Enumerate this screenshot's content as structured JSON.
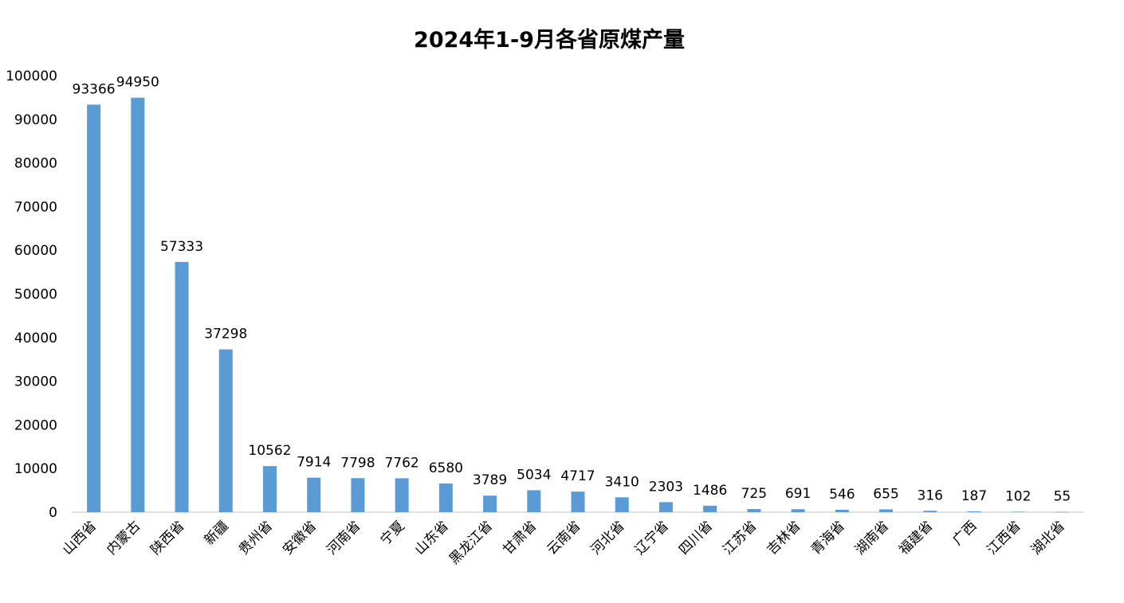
{
  "chart_data": {
    "type": "bar",
    "title": "2024年1-9月各省原煤产量",
    "xlabel": "",
    "ylabel": "",
    "ylim": [
      0,
      100000
    ],
    "yticks": [
      0,
      10000,
      20000,
      30000,
      40000,
      50000,
      60000,
      70000,
      80000,
      90000,
      100000
    ],
    "grid": false,
    "legend": "none",
    "bar_color": "#5B9BD5",
    "categories": [
      "山西省",
      "内蒙古",
      "陕西省",
      "新疆",
      "贵州省",
      "安徽省",
      "河南省",
      "宁夏",
      "山东省",
      "黑龙江省",
      "甘肃省",
      "云南省",
      "河北省",
      "辽宁省",
      "四川省",
      "江苏省",
      "吉林省",
      "青海省",
      "湖南省",
      "福建省",
      "广西",
      "江西省",
      "湖北省"
    ],
    "values": [
      93366,
      94950,
      57333,
      37298,
      10562,
      7914,
      7798,
      7762,
      6580,
      3789,
      5034,
      4717,
      3410,
      2303,
      1486,
      725,
      691,
      546,
      655,
      316,
      187,
      102,
      55
    ]
  }
}
